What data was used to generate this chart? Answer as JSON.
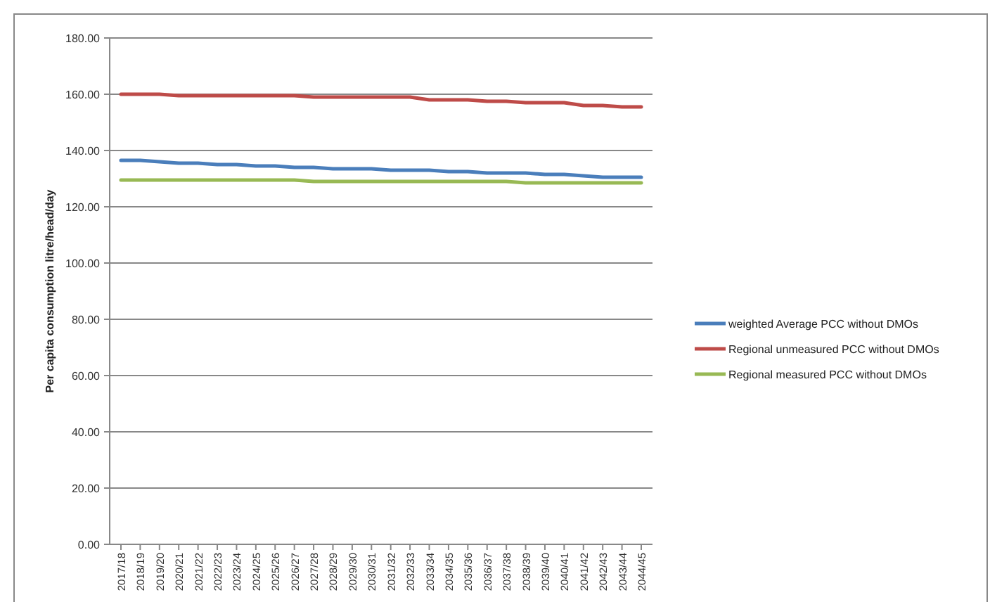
{
  "chart_data": {
    "type": "line",
    "ylabel": "Per capita consumption litre/head/day",
    "categories": [
      "2017/18",
      "2018/19",
      "2019/20",
      "2020/21",
      "2021/22",
      "2022/23",
      "2023/24",
      "2024/25",
      "2025/26",
      "2026/27",
      "2027/28",
      "2028/29",
      "2029/30",
      "2030/31",
      "2031/32",
      "2032/33",
      "2033/34",
      "2034/35",
      "2035/36",
      "2036/37",
      "2037/38",
      "2038/39",
      "2039/40",
      "2040/41",
      "2041/42",
      "2042/43",
      "2043/44",
      "2044/45"
    ],
    "series": [
      {
        "name": "weighted Average PCC without DMOs",
        "color": "#4a7ebb",
        "values": [
          136.5,
          136.5,
          136,
          135.5,
          135.5,
          135,
          135,
          134.5,
          134.5,
          134,
          134,
          133.5,
          133.5,
          133.5,
          133,
          133,
          133,
          132.5,
          132.5,
          132,
          132,
          132,
          131.5,
          131.5,
          131,
          130.5,
          130.5,
          130.5
        ]
      },
      {
        "name": "Regional unmeasured PCC without DMOs",
        "color": "#be4b48",
        "values": [
          160,
          160,
          160,
          159.5,
          159.5,
          159.5,
          159.5,
          159.5,
          159.5,
          159.5,
          159,
          159,
          159,
          159,
          159,
          159,
          158,
          158,
          158,
          157.5,
          157.5,
          157,
          157,
          157,
          156,
          156,
          155.5,
          155.5
        ]
      },
      {
        "name": "Regional measured PCC without DMOs",
        "color": "#98b954",
        "values": [
          129.5,
          129.5,
          129.5,
          129.5,
          129.5,
          129.5,
          129.5,
          129.5,
          129.5,
          129.5,
          129,
          129,
          129,
          129,
          129,
          129,
          129,
          129,
          129,
          129,
          129,
          128.5,
          128.5,
          128.5,
          128.5,
          128.5,
          128.5,
          128.5
        ]
      }
    ],
    "ylim": [
      0,
      180
    ],
    "yticks": [
      {
        "value": 0,
        "label": "0.00"
      },
      {
        "value": 20,
        "label": "20.00"
      },
      {
        "value": 40,
        "label": "40.00"
      },
      {
        "value": 60,
        "label": "60.00"
      },
      {
        "value": 80,
        "label": "80.00"
      },
      {
        "value": 100,
        "label": "100.00"
      },
      {
        "value": 120,
        "label": "120.00"
      },
      {
        "value": 140,
        "label": "140.00"
      },
      {
        "value": 160,
        "label": "160.00"
      },
      {
        "value": 180,
        "label": "180.00"
      }
    ],
    "grid": "y",
    "legend": "right",
    "line_style": "solid",
    "marker": "none"
  }
}
